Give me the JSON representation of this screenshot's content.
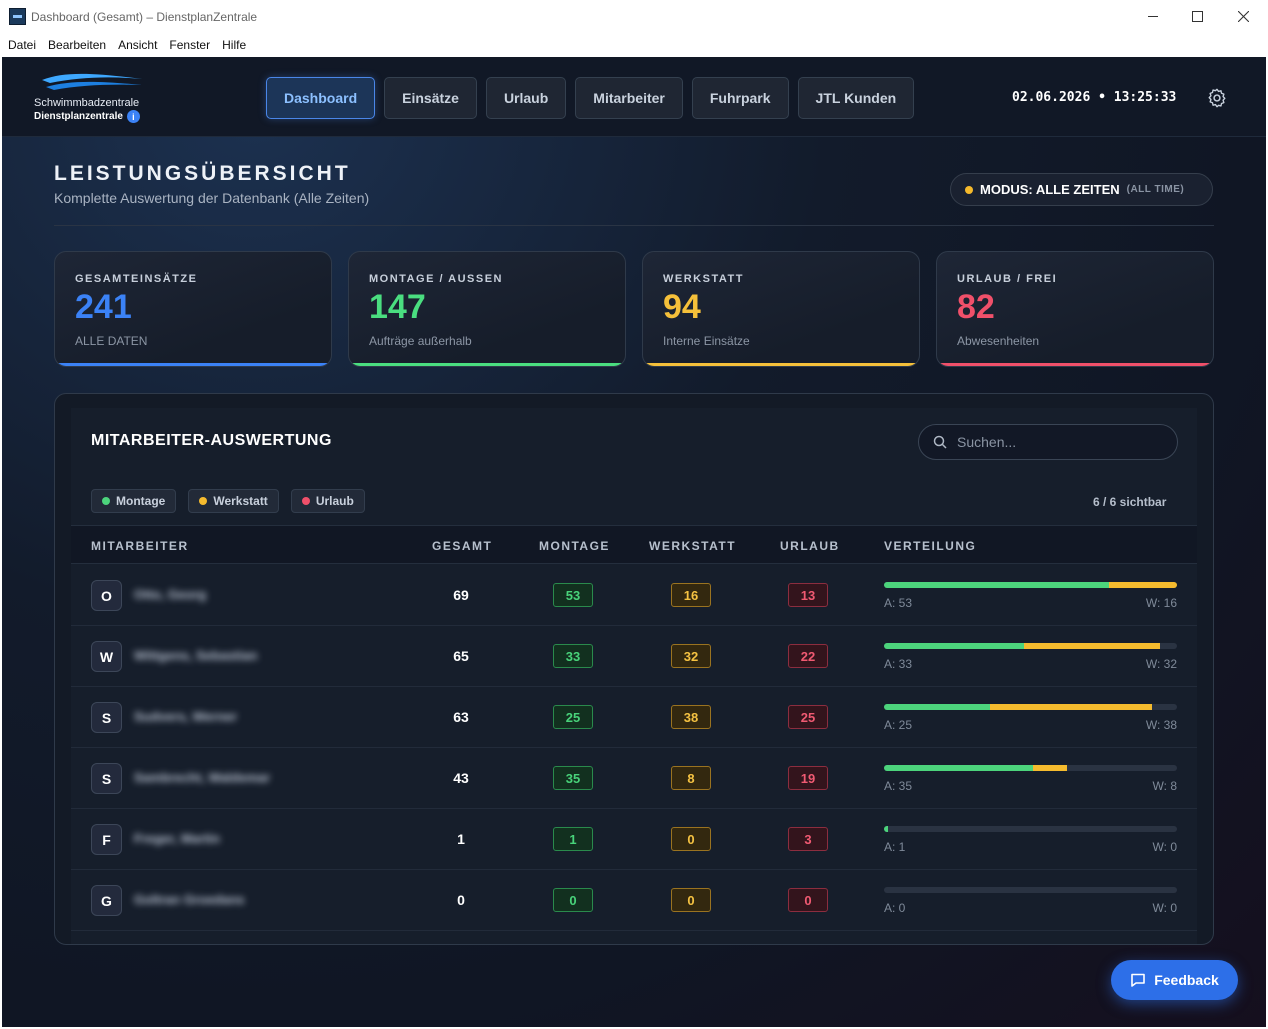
{
  "window": {
    "title": "Dashboard (Gesamt) – DienstplanZentrale",
    "menu": [
      "Datei",
      "Bearbeiten",
      "Ansicht",
      "Fenster",
      "Hilfe"
    ]
  },
  "header": {
    "logo_name": "Schwimmbadzentrale",
    "logo_sub": "Dienstplanzentrale",
    "nav": [
      "Dashboard",
      "Einsätze",
      "Urlaub",
      "Mitarbeiter",
      "Fuhrpark",
      "JTL Kunden"
    ],
    "active_nav": 0,
    "clock": "02.06.2026 • 13:25:33"
  },
  "page": {
    "title": "LEISTUNGSÜBERSICHT",
    "subtitle": "Komplette Auswertung der Datenbank (Alle Zeiten)",
    "mode_label": "MODUS: ALLE ZEITEN",
    "mode_hint": "(ALL TIME)"
  },
  "stats": [
    {
      "label": "GESAMTEINSÄTZE",
      "value": "241",
      "desc": "ALLE DATEN",
      "color": "#3b82f6"
    },
    {
      "label": "MONTAGE / AUSSEN",
      "value": "147",
      "desc": "Aufträge außerhalb",
      "color": "#4ade80"
    },
    {
      "label": "WERKSTATT",
      "value": "94",
      "desc": "Interne Einsätze",
      "color": "#f5c03a"
    },
    {
      "label": "URLAUB / FREI",
      "value": "82",
      "desc": "Abwesenheiten",
      "color": "#f0506a"
    }
  ],
  "panel": {
    "title": "MITARBEITER-AUSWERTUNG",
    "search_placeholder": "Suchen...",
    "legend": [
      {
        "label": "Montage",
        "color": "#4cd47c"
      },
      {
        "label": "Werkstatt",
        "color": "#f5bb2e"
      },
      {
        "label": "Urlaub",
        "color": "#f0506a"
      }
    ],
    "visible_count": "6 / 6 sichtbar",
    "columns": [
      "MITARBEITER",
      "GESAMT",
      "MONTAGE",
      "WERKSTATT",
      "URLAUB",
      "VERTEILUNG"
    ],
    "rows": [
      {
        "initial": "O",
        "name": "Otto, Georg",
        "total": 69,
        "montage": 53,
        "werkstatt": 16,
        "urlaub": 13,
        "a_label": "A: 53",
        "w_label": "W: 16"
      },
      {
        "initial": "W",
        "name": "Wittgens, Sebastian",
        "total": 65,
        "montage": 33,
        "werkstatt": 32,
        "urlaub": 22,
        "a_label": "A: 33",
        "w_label": "W: 32"
      },
      {
        "initial": "S",
        "name": "Sudvers, Werner",
        "total": 63,
        "montage": 25,
        "werkstatt": 38,
        "urlaub": 25,
        "a_label": "A: 25",
        "w_label": "W: 38"
      },
      {
        "initial": "S",
        "name": "Sambrecht, Waldemar",
        "total": 43,
        "montage": 35,
        "werkstatt": 8,
        "urlaub": 19,
        "a_label": "A: 35",
        "w_label": "W: 8"
      },
      {
        "initial": "F",
        "name": "Freger, Martin",
        "total": 1,
        "montage": 1,
        "werkstatt": 0,
        "urlaub": 3,
        "a_label": "A: 1",
        "w_label": "W: 0"
      },
      {
        "initial": "G",
        "name": "Goltran Groedans",
        "total": 0,
        "montage": 0,
        "werkstatt": 0,
        "urlaub": 0,
        "a_label": "A: 0",
        "w_label": "W: 0"
      }
    ],
    "bar_max": 69
  },
  "feedback_label": "Feedback"
}
